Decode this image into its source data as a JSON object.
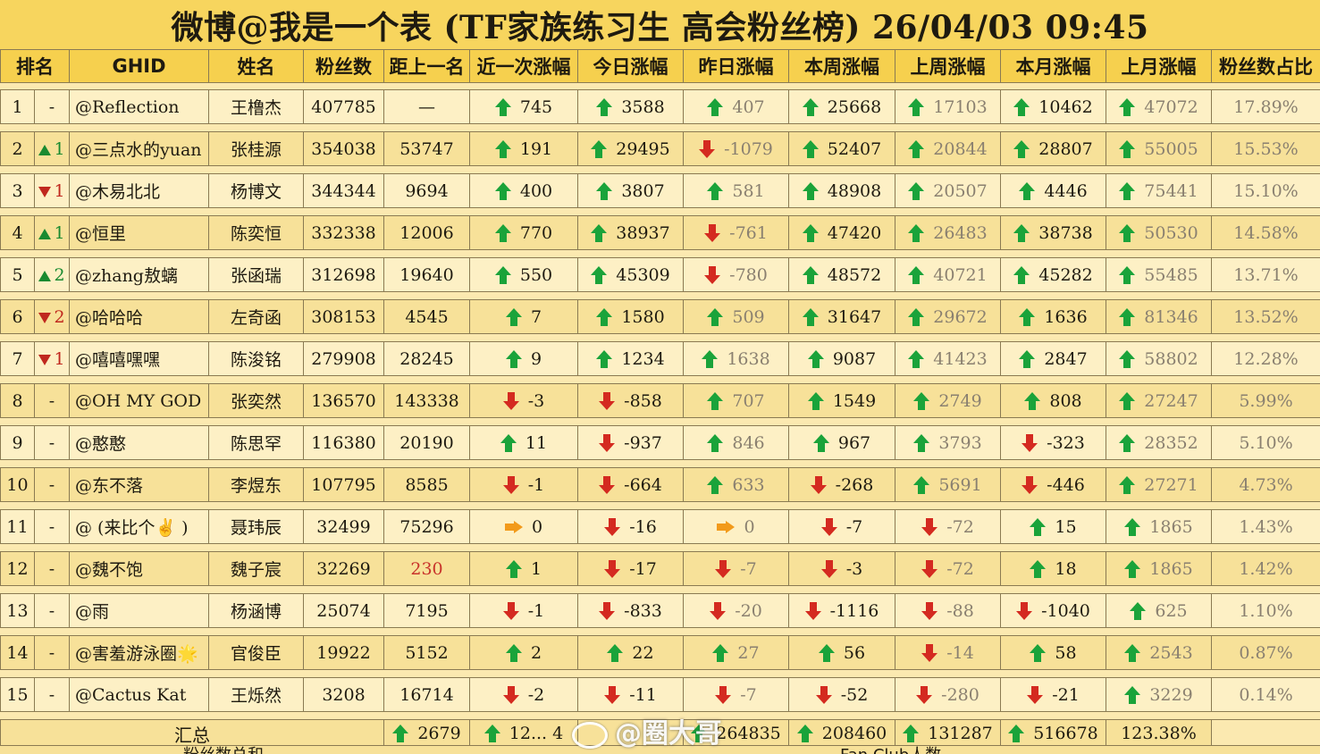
{
  "title": "微博@我是一个表 (TF家族练习生 高会粉丝榜)  26/04/03 09:45",
  "colors": {
    "header_bg": "#f6d04e",
    "row_odd": "#fdf0c5",
    "row_even": "#f7e199",
    "up": "#1aa33a",
    "down": "#d42a20",
    "flat": "#f29a1a"
  },
  "headers": [
    "排名",
    "GHID",
    "姓名",
    "粉丝数",
    "距上一名",
    "近一次涨幅",
    "今日涨幅",
    "昨日涨幅",
    "本周涨幅",
    "上周涨幅",
    "本月涨幅",
    "上月涨幅",
    "粉丝数占比"
  ],
  "rows": [
    {
      "rank": "1",
      "change": {
        "dir": "none",
        "text": "-"
      },
      "ghid": "@Reflection",
      "name": "王橹杰",
      "fans": "407785",
      "gap": "—",
      "recent": {
        "dir": "up",
        "v": "745"
      },
      "today": {
        "dir": "up",
        "v": "3588"
      },
      "yesterday": {
        "dir": "up",
        "v": "407"
      },
      "week": {
        "dir": "up",
        "v": "25668"
      },
      "lastweek": {
        "dir": "up",
        "v": "17103"
      },
      "month": {
        "dir": "up",
        "v": "10462"
      },
      "lastmonth": {
        "dir": "up",
        "v": "47072"
      },
      "share": "17.89%"
    },
    {
      "rank": "2",
      "change": {
        "dir": "up",
        "text": "1"
      },
      "ghid": "@三点水的yuan",
      "name": "张桂源",
      "fans": "354038",
      "gap": "53747",
      "recent": {
        "dir": "up",
        "v": "191"
      },
      "today": {
        "dir": "up",
        "v": "29495"
      },
      "yesterday": {
        "dir": "down",
        "v": "-1079"
      },
      "week": {
        "dir": "up",
        "v": "52407"
      },
      "lastweek": {
        "dir": "up",
        "v": "20844"
      },
      "month": {
        "dir": "up",
        "v": "28807"
      },
      "lastmonth": {
        "dir": "up",
        "v": "55005"
      },
      "share": "15.53%"
    },
    {
      "rank": "3",
      "change": {
        "dir": "down",
        "text": "1"
      },
      "ghid": "@木易北北",
      "name": "杨博文",
      "fans": "344344",
      "gap": "9694",
      "recent": {
        "dir": "up",
        "v": "400"
      },
      "today": {
        "dir": "up",
        "v": "3807"
      },
      "yesterday": {
        "dir": "up",
        "v": "581"
      },
      "week": {
        "dir": "up",
        "v": "48908"
      },
      "lastweek": {
        "dir": "up",
        "v": "20507"
      },
      "month": {
        "dir": "up",
        "v": "4446"
      },
      "lastmonth": {
        "dir": "up",
        "v": "75441"
      },
      "share": "15.10%"
    },
    {
      "rank": "4",
      "change": {
        "dir": "up",
        "text": "1"
      },
      "ghid": "@恒里",
      "name": "陈奕恒",
      "fans": "332338",
      "gap": "12006",
      "recent": {
        "dir": "up",
        "v": "770"
      },
      "today": {
        "dir": "up",
        "v": "38937"
      },
      "yesterday": {
        "dir": "down",
        "v": "-761"
      },
      "week": {
        "dir": "up",
        "v": "47420"
      },
      "lastweek": {
        "dir": "up",
        "v": "26483"
      },
      "month": {
        "dir": "up",
        "v": "38738"
      },
      "lastmonth": {
        "dir": "up",
        "v": "50530"
      },
      "share": "14.58%"
    },
    {
      "rank": "5",
      "change": {
        "dir": "up",
        "text": "2"
      },
      "ghid": "@zhang敖螭",
      "name": "张函瑞",
      "fans": "312698",
      "gap": "19640",
      "recent": {
        "dir": "up",
        "v": "550"
      },
      "today": {
        "dir": "up",
        "v": "45309"
      },
      "yesterday": {
        "dir": "down",
        "v": "-780"
      },
      "week": {
        "dir": "up",
        "v": "48572"
      },
      "lastweek": {
        "dir": "up",
        "v": "40721"
      },
      "month": {
        "dir": "up",
        "v": "45282"
      },
      "lastmonth": {
        "dir": "up",
        "v": "55485"
      },
      "share": "13.71%"
    },
    {
      "rank": "6",
      "change": {
        "dir": "down",
        "text": "2"
      },
      "ghid": "@哈哈哈",
      "name": "左奇函",
      "fans": "308153",
      "gap": "4545",
      "recent": {
        "dir": "up",
        "v": "7"
      },
      "today": {
        "dir": "up",
        "v": "1580"
      },
      "yesterday": {
        "dir": "up",
        "v": "509"
      },
      "week": {
        "dir": "up",
        "v": "31647"
      },
      "lastweek": {
        "dir": "up",
        "v": "29672"
      },
      "month": {
        "dir": "up",
        "v": "1636"
      },
      "lastmonth": {
        "dir": "up",
        "v": "81346"
      },
      "share": "13.52%"
    },
    {
      "rank": "7",
      "change": {
        "dir": "down",
        "text": "1"
      },
      "ghid": "@嘻嘻嘿嘿",
      "name": "陈浚铭",
      "fans": "279908",
      "gap": "28245",
      "recent": {
        "dir": "up",
        "v": "9"
      },
      "today": {
        "dir": "up",
        "v": "1234"
      },
      "yesterday": {
        "dir": "up",
        "v": "1638"
      },
      "week": {
        "dir": "up",
        "v": "9087"
      },
      "lastweek": {
        "dir": "up",
        "v": "41423"
      },
      "month": {
        "dir": "up",
        "v": "2847"
      },
      "lastmonth": {
        "dir": "up",
        "v": "58802"
      },
      "share": "12.28%"
    },
    {
      "rank": "8",
      "change": {
        "dir": "none",
        "text": "-"
      },
      "ghid": "@OH MY GOD",
      "name": "张奕然",
      "fans": "136570",
      "gap": "143338",
      "recent": {
        "dir": "down",
        "v": "-3"
      },
      "today": {
        "dir": "down",
        "v": "-858"
      },
      "yesterday": {
        "dir": "up",
        "v": "707"
      },
      "week": {
        "dir": "up",
        "v": "1549"
      },
      "lastweek": {
        "dir": "up",
        "v": "2749"
      },
      "month": {
        "dir": "up",
        "v": "808"
      },
      "lastmonth": {
        "dir": "up",
        "v": "27247"
      },
      "share": "5.99%"
    },
    {
      "rank": "9",
      "change": {
        "dir": "none",
        "text": "-"
      },
      "ghid": "@憨憨",
      "name": "陈思罕",
      "fans": "116380",
      "gap": "20190",
      "recent": {
        "dir": "up",
        "v": "11"
      },
      "today": {
        "dir": "down",
        "v": "-937"
      },
      "yesterday": {
        "dir": "up",
        "v": "846"
      },
      "week": {
        "dir": "up",
        "v": "967"
      },
      "lastweek": {
        "dir": "up",
        "v": "3793"
      },
      "month": {
        "dir": "down",
        "v": "-323"
      },
      "lastmonth": {
        "dir": "up",
        "v": "28352"
      },
      "share": "5.10%"
    },
    {
      "rank": "10",
      "change": {
        "dir": "none",
        "text": "-"
      },
      "ghid": "@东不落",
      "name": "李煜东",
      "fans": "107795",
      "gap": "8585",
      "recent": {
        "dir": "down",
        "v": "-1"
      },
      "today": {
        "dir": "down",
        "v": "-664"
      },
      "yesterday": {
        "dir": "up",
        "v": "633"
      },
      "week": {
        "dir": "down",
        "v": "-268"
      },
      "lastweek": {
        "dir": "up",
        "v": "5691"
      },
      "month": {
        "dir": "down",
        "v": "-446"
      },
      "lastmonth": {
        "dir": "up",
        "v": "27271"
      },
      "share": "4.73%"
    },
    {
      "rank": "11",
      "change": {
        "dir": "none",
        "text": "-"
      },
      "ghid": "@ (来比个✌ )",
      "name": "聂玮辰",
      "fans": "32499",
      "gap": "75296",
      "recent": {
        "dir": "flat",
        "v": "0"
      },
      "today": {
        "dir": "down",
        "v": "-16"
      },
      "yesterday": {
        "dir": "flat",
        "v": "0"
      },
      "week": {
        "dir": "down",
        "v": "-7"
      },
      "lastweek": {
        "dir": "down",
        "v": "-72"
      },
      "month": {
        "dir": "up",
        "v": "15"
      },
      "lastmonth": {
        "dir": "up",
        "v": "1865"
      },
      "share": "1.43%"
    },
    {
      "rank": "12",
      "change": {
        "dir": "none",
        "text": "-"
      },
      "ghid": "@魏不饱",
      "name": "魏子宸",
      "fans": "32269",
      "gap": "230",
      "gap_red": true,
      "recent": {
        "dir": "up",
        "v": "1"
      },
      "today": {
        "dir": "down",
        "v": "-17"
      },
      "yesterday": {
        "dir": "down",
        "v": "-7"
      },
      "week": {
        "dir": "down",
        "v": "-3"
      },
      "lastweek": {
        "dir": "down",
        "v": "-72"
      },
      "month": {
        "dir": "up",
        "v": "18"
      },
      "lastmonth": {
        "dir": "up",
        "v": "1865"
      },
      "share": "1.42%"
    },
    {
      "rank": "13",
      "change": {
        "dir": "none",
        "text": "-"
      },
      "ghid": "@雨",
      "name": "杨涵博",
      "fans": "25074",
      "gap": "7195",
      "recent": {
        "dir": "down",
        "v": "-1"
      },
      "today": {
        "dir": "down",
        "v": "-833"
      },
      "yesterday": {
        "dir": "down",
        "v": "-20"
      },
      "week": {
        "dir": "down",
        "v": "-1116"
      },
      "lastweek": {
        "dir": "down",
        "v": "-88"
      },
      "month": {
        "dir": "down",
        "v": "-1040"
      },
      "lastmonth": {
        "dir": "up",
        "v": "625"
      },
      "share": "1.10%"
    },
    {
      "rank": "14",
      "change": {
        "dir": "none",
        "text": "-"
      },
      "ghid": "@害羞游泳圈🌟",
      "name": "官俊臣",
      "fans": "19922",
      "gap": "5152",
      "recent": {
        "dir": "up",
        "v": "2"
      },
      "today": {
        "dir": "up",
        "v": "22"
      },
      "yesterday": {
        "dir": "up",
        "v": "27"
      },
      "week": {
        "dir": "up",
        "v": "56"
      },
      "lastweek": {
        "dir": "down",
        "v": "-14"
      },
      "month": {
        "dir": "up",
        "v": "58"
      },
      "lastmonth": {
        "dir": "up",
        "v": "2543"
      },
      "share": "0.87%"
    },
    {
      "rank": "15",
      "change": {
        "dir": "none",
        "text": "-"
      },
      "ghid": "@Cactus Kat",
      "name": "王烁然",
      "fans": "3208",
      "gap": "16714",
      "recent": {
        "dir": "down",
        "v": "-2"
      },
      "today": {
        "dir": "down",
        "v": "-11"
      },
      "yesterday": {
        "dir": "down",
        "v": "-7"
      },
      "week": {
        "dir": "down",
        "v": "-52"
      },
      "lastweek": {
        "dir": "down",
        "v": "-280"
      },
      "month": {
        "dir": "down",
        "v": "-21"
      },
      "lastmonth": {
        "dir": "up",
        "v": "3229"
      },
      "share": "0.14%"
    }
  ],
  "total": {
    "label": "汇总",
    "recent": "2679",
    "today": "12... 4",
    "week": "264835",
    "lastweek": "208460",
    "month": "131287",
    "lastmonth": "516678",
    "share": "123.38%"
  },
  "footer": {
    "left": "粉丝数总和",
    "mid": "Fan Club人数"
  },
  "watermark": "@圈大哥"
}
